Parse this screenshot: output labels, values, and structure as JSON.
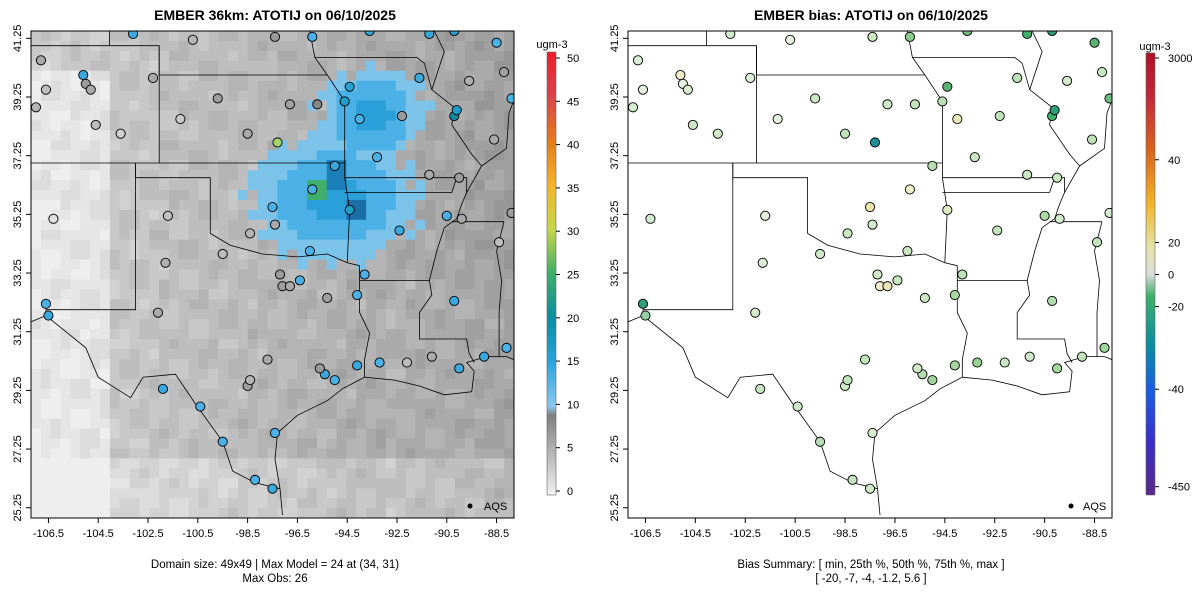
{
  "left_panel": {
    "title": "EMBER 36km: ATOTIJ on 06/10/2025",
    "legend_unit": "ugm-3",
    "legend_ticks": [
      "0",
      "5",
      "10",
      "15",
      "20",
      "25",
      "30",
      "35",
      "40",
      "45",
      "50"
    ],
    "legend_values": [
      0,
      5,
      10,
      15,
      20,
      25,
      30,
      35,
      40,
      45,
      50
    ],
    "footer_line1": "Domain size: 49x49 | Max Model = 24 at (34, 31)",
    "footer_line2": "Max Obs: 26",
    "key_label": "AQS"
  },
  "right_panel": {
    "title": "EMBER bias: ATOTIJ on 06/10/2025",
    "legend_unit": "ugm-3",
    "legend_ticks": [
      "3000",
      "40",
      "20",
      "0",
      "-20",
      "-40",
      "-450"
    ],
    "footer_line1": "Bias Summary: [ min, 25th %, 50th %, 75th %, max ]",
    "footer_line2": "[ -20,  -7,  -4,  -1.2,   5.6 ]",
    "key_label": "AQS"
  },
  "axes": {
    "x_ticks": [
      "-106.5",
      "-104.5",
      "-102.5",
      "-100.5",
      "-98.5",
      "-96.5",
      "-94.5",
      "-92.5",
      "-90.5",
      "-88.5"
    ],
    "x_values": [
      -106.5,
      -104.5,
      -102.5,
      -100.5,
      -98.5,
      -96.5,
      -94.5,
      -92.5,
      -90.5,
      -88.5
    ],
    "y_ticks": [
      "25.25",
      "27.25",
      "29.25",
      "31.25",
      "33.25",
      "35.25",
      "37.25",
      "39.25",
      "41.25"
    ],
    "y_values": [
      25.25,
      27.25,
      29.25,
      31.25,
      33.25,
      35.25,
      37.25,
      39.25,
      41.25
    ],
    "lon_range": [
      -107.2,
      -87.8
    ],
    "lat_range": [
      24.9,
      41.5
    ]
  },
  "colors": {
    "gray_light": "#f2f2f2",
    "gray_dark": "#7f7f7f",
    "blue": "#4bb0e6",
    "teal": "#0a8ea0",
    "green": "#3fae6a",
    "ink": "#000000"
  },
  "stations": [
    {
      "lon": -106.5,
      "lat": 31.8,
      "c": "#3aa8dd",
      "b": "#8fd0a0"
    },
    {
      "lon": -106.3,
      "lat": 35.1,
      "c": "#e0e0e0",
      "b": "#d4ecd4"
    },
    {
      "lon": -106.6,
      "lat": 32.2,
      "c": "#4bb0e6",
      "b": "#2e9e7a"
    },
    {
      "lon": -105.0,
      "lat": 39.7,
      "c": "#9a9a9a",
      "b": "#e8f3e2"
    },
    {
      "lon": -105.1,
      "lat": 40.0,
      "c": "#3aa8dd",
      "b": "#f1eecb"
    },
    {
      "lon": -104.8,
      "lat": 39.5,
      "c": "#aaaaaa",
      "b": "#dbeed4"
    },
    {
      "lon": -104.6,
      "lat": 38.3,
      "c": "#bbbbbb",
      "b": "#cfe8c8"
    },
    {
      "lon": -106.6,
      "lat": 39.5,
      "c": "#c0c0c0",
      "b": "#e6f2e0"
    },
    {
      "lon": -107.0,
      "lat": 38.9,
      "c": "#b5b5b5",
      "b": "#d8ecd0"
    },
    {
      "lon": -103.6,
      "lat": 38.0,
      "c": "#cfcfcf",
      "b": "#d0e9c8"
    },
    {
      "lon": -102.3,
      "lat": 39.9,
      "c": "#aaaaaa",
      "b": "#dcefd6"
    },
    {
      "lon": -101.2,
      "lat": 38.5,
      "c": "#c8c8c8",
      "b": "#e5f2e0"
    },
    {
      "lon": -99.7,
      "lat": 39.2,
      "c": "#9e9e9e",
      "b": "#cde8c6"
    },
    {
      "lon": -98.5,
      "lat": 38.0,
      "c": "#a8a8a8",
      "b": "#bfe2b8"
    },
    {
      "lon": -97.3,
      "lat": 37.7,
      "c": "#a3d36b",
      "b": "#1e8c92"
    },
    {
      "lon": -96.8,
      "lat": 39.0,
      "c": "#a0a0a0",
      "b": "#cfe8c6"
    },
    {
      "lon": -95.7,
      "lat": 39.0,
      "c": "#888888",
      "b": "#c5e4be"
    },
    {
      "lon": -94.6,
      "lat": 39.1,
      "c": "#1f9ec9",
      "b": "#b8dfb3"
    },
    {
      "lon": -94.4,
      "lat": 39.6,
      "c": "#27a3d4",
      "b": "#5ab36e"
    },
    {
      "lon": -94.0,
      "lat": 38.5,
      "c": "#4bb0e6",
      "b": "#e8e8b8"
    },
    {
      "lon": -93.3,
      "lat": 37.2,
      "c": "#4bb0e6",
      "b": "#c9e5c2"
    },
    {
      "lon": -92.3,
      "lat": 38.6,
      "c": "#9a9a9a",
      "b": "#bfe2b8"
    },
    {
      "lon": -90.2,
      "lat": 38.6,
      "c": "#138a9c",
      "b": "#3fae6a"
    },
    {
      "lon": -90.1,
      "lat": 38.8,
      "c": "#1f9ec9",
      "b": "#2e9e7a"
    },
    {
      "lon": -89.6,
      "lat": 39.8,
      "c": "#b0b0b0",
      "b": "#d2eacb"
    },
    {
      "lon": -88.2,
      "lat": 40.1,
      "c": "#a0a0a0",
      "b": "#cbe7c3"
    },
    {
      "lon": -87.9,
      "lat": 39.2,
      "c": "#4bb0e6",
      "b": "#6fbc7c"
    },
    {
      "lon": -88.6,
      "lat": 37.8,
      "c": "#aaaaaa",
      "b": "#bde1b5"
    },
    {
      "lon": -90.0,
      "lat": 36.5,
      "c": "#9c9c9c",
      "b": "#cbe7c3"
    },
    {
      "lon": -90.5,
      "lat": 35.2,
      "c": "#4bb0e6",
      "b": "#aad9a4"
    },
    {
      "lon": -89.9,
      "lat": 35.1,
      "c": "#a8a8a8",
      "b": "#d3ebcc"
    },
    {
      "lon": -88.4,
      "lat": 34.3,
      "c": "#bdbdbd",
      "b": "#c7e6c0"
    },
    {
      "lon": -87.9,
      "lat": 35.3,
      "c": "#9e9e9e",
      "b": "#d5ebcd"
    },
    {
      "lon": -90.2,
      "lat": 32.3,
      "c": "#3aa8dd",
      "b": "#b2ddac"
    },
    {
      "lon": -90.0,
      "lat": 30.0,
      "c": "#3aa8dd",
      "b": "#a6d8a0"
    },
    {
      "lon": -89.0,
      "lat": 30.4,
      "c": "#3aa8dd",
      "b": "#bfe2b8"
    },
    {
      "lon": -88.1,
      "lat": 30.7,
      "c": "#4bb0e6",
      "b": "#9fd49a"
    },
    {
      "lon": -91.1,
      "lat": 30.4,
      "c": "#aaaaaa",
      "b": "#d2eacb"
    },
    {
      "lon": -92.1,
      "lat": 30.2,
      "c": "#bdbdbd",
      "b": "#cbe7c3"
    },
    {
      "lon": -93.2,
      "lat": 30.2,
      "c": "#4bb0e6",
      "b": "#98d294"
    },
    {
      "lon": -94.1,
      "lat": 30.1,
      "c": "#3aa8dd",
      "b": "#a3d79d"
    },
    {
      "lon": -95.4,
      "lat": 29.8,
      "c": "#3aa8dd",
      "b": "#b5deaf"
    },
    {
      "lon": -95.0,
      "lat": 29.6,
      "c": "#4bb0e6",
      "b": "#9ed49a"
    },
    {
      "lon": -95.6,
      "lat": 30.0,
      "c": "#9a9a9a",
      "b": "#cfe8c6"
    },
    {
      "lon": -97.7,
      "lat": 30.3,
      "c": "#a8a8a8",
      "b": "#c4e5bc"
    },
    {
      "lon": -98.5,
      "lat": 29.4,
      "c": "#a0a0a0",
      "b": "#cbe7c3"
    },
    {
      "lon": -98.4,
      "lat": 29.6,
      "c": "#b5b5b5",
      "b": "#bfe2b8"
    },
    {
      "lon": -97.4,
      "lat": 27.8,
      "c": "#4bb0e6",
      "b": "#d8ecd0"
    },
    {
      "lon": -99.5,
      "lat": 27.5,
      "c": "#4bb0e6",
      "b": "#b8dfb3"
    },
    {
      "lon": -97.5,
      "lat": 25.9,
      "c": "#3aa8dd",
      "b": "#cfe8c6"
    },
    {
      "lon": -98.2,
      "lat": 26.2,
      "c": "#4bb0e6",
      "b": "#c5e4be"
    },
    {
      "lon": -101.9,
      "lat": 29.3,
      "c": "#3aa8dd",
      "b": "#c9e5c2"
    },
    {
      "lon": -100.4,
      "lat": 28.7,
      "c": "#4bb0e6",
      "b": "#cde8c6"
    },
    {
      "lon": -102.1,
      "lat": 31.9,
      "c": "#aaaaaa",
      "b": "#d5ebcd"
    },
    {
      "lon": -101.8,
      "lat": 33.6,
      "c": "#b0b0b0",
      "b": "#dcefd6"
    },
    {
      "lon": -101.7,
      "lat": 35.2,
      "c": "#c0c0c0",
      "b": "#e0f0da"
    },
    {
      "lon": -99.5,
      "lat": 33.9,
      "c": "#bdbdbd",
      "b": "#d0e9c8"
    },
    {
      "lon": -97.1,
      "lat": 32.8,
      "c": "#9e9e9e",
      "b": "#f1eecb"
    },
    {
      "lon": -96.8,
      "lat": 32.8,
      "c": "#aaaaaa",
      "b": "#e8e6b8"
    },
    {
      "lon": -97.2,
      "lat": 33.2,
      "c": "#9c9c9c",
      "b": "#cfe8c6"
    },
    {
      "lon": -96.4,
      "lat": 33.0,
      "c": "#4bb0e6",
      "b": "#c8e6c0"
    },
    {
      "lon": -95.3,
      "lat": 32.4,
      "c": "#a0a0a0",
      "b": "#cbe7c3"
    },
    {
      "lon": -94.1,
      "lat": 32.5,
      "c": "#4bb0e6",
      "b": "#a6d8a0"
    },
    {
      "lon": -93.8,
      "lat": 33.2,
      "c": "#4bb0e6",
      "b": "#bfe2b8"
    },
    {
      "lon": -92.4,
      "lat": 34.7,
      "c": "#3aa8dd",
      "b": "#c4e5bc"
    },
    {
      "lon": -94.4,
      "lat": 35.4,
      "c": "#1f9ec9",
      "b": "#dfe9c2"
    },
    {
      "lon": -95.9,
      "lat": 36.1,
      "c": "#4bb0e6",
      "b": "#f1eecb"
    },
    {
      "lon": -97.5,
      "lat": 35.5,
      "c": "#4bb0e6",
      "b": "#ece6a8"
    },
    {
      "lon": -97.4,
      "lat": 34.9,
      "c": "#aaaaaa",
      "b": "#d5ebcd"
    },
    {
      "lon": -98.4,
      "lat": 34.6,
      "c": "#b5b5b5",
      "b": "#cbe7c3"
    },
    {
      "lon": -96.0,
      "lat": 34.0,
      "c": "#4bb0e6",
      "b": "#c8e6c0"
    },
    {
      "lon": -95.0,
      "lat": 36.9,
      "c": "#3aa8dd",
      "b": "#b5deaf"
    },
    {
      "lon": -91.2,
      "lat": 36.6,
      "c": "#aaaaaa",
      "b": "#c9e5c2"
    },
    {
      "lon": -91.6,
      "lat": 39.9,
      "c": "#3aa8dd",
      "b": "#bde1b5"
    },
    {
      "lon": -88.5,
      "lat": 41.1,
      "c": "#4bb0e6",
      "b": "#5ab36e"
    },
    {
      "lon": -91.2,
      "lat": 41.4,
      "c": "#3aa8dd",
      "b": "#3fae6a"
    },
    {
      "lon": -90.2,
      "lat": 41.5,
      "c": "#27a3d4",
      "b": "#2e9e7a"
    },
    {
      "lon": -93.6,
      "lat": 41.5,
      "c": "#3aa8dd",
      "b": "#6fbc7c"
    },
    {
      "lon": -95.9,
      "lat": 41.3,
      "c": "#4bb0e6",
      "b": "#8bcb8a"
    },
    {
      "lon": -97.4,
      "lat": 41.3,
      "c": "#9a9a9a",
      "b": "#cbe7c3"
    },
    {
      "lon": -100.7,
      "lat": 41.2,
      "c": "#b5b5b5",
      "b": "#e4f1df"
    },
    {
      "lon": -103.1,
      "lat": 41.4,
      "c": "#3aa8dd",
      "b": "#d3ebcc"
    },
    {
      "lon": -106.8,
      "lat": 40.5,
      "c": "#aaaaaa",
      "b": "#dcefd6"
    }
  ]
}
